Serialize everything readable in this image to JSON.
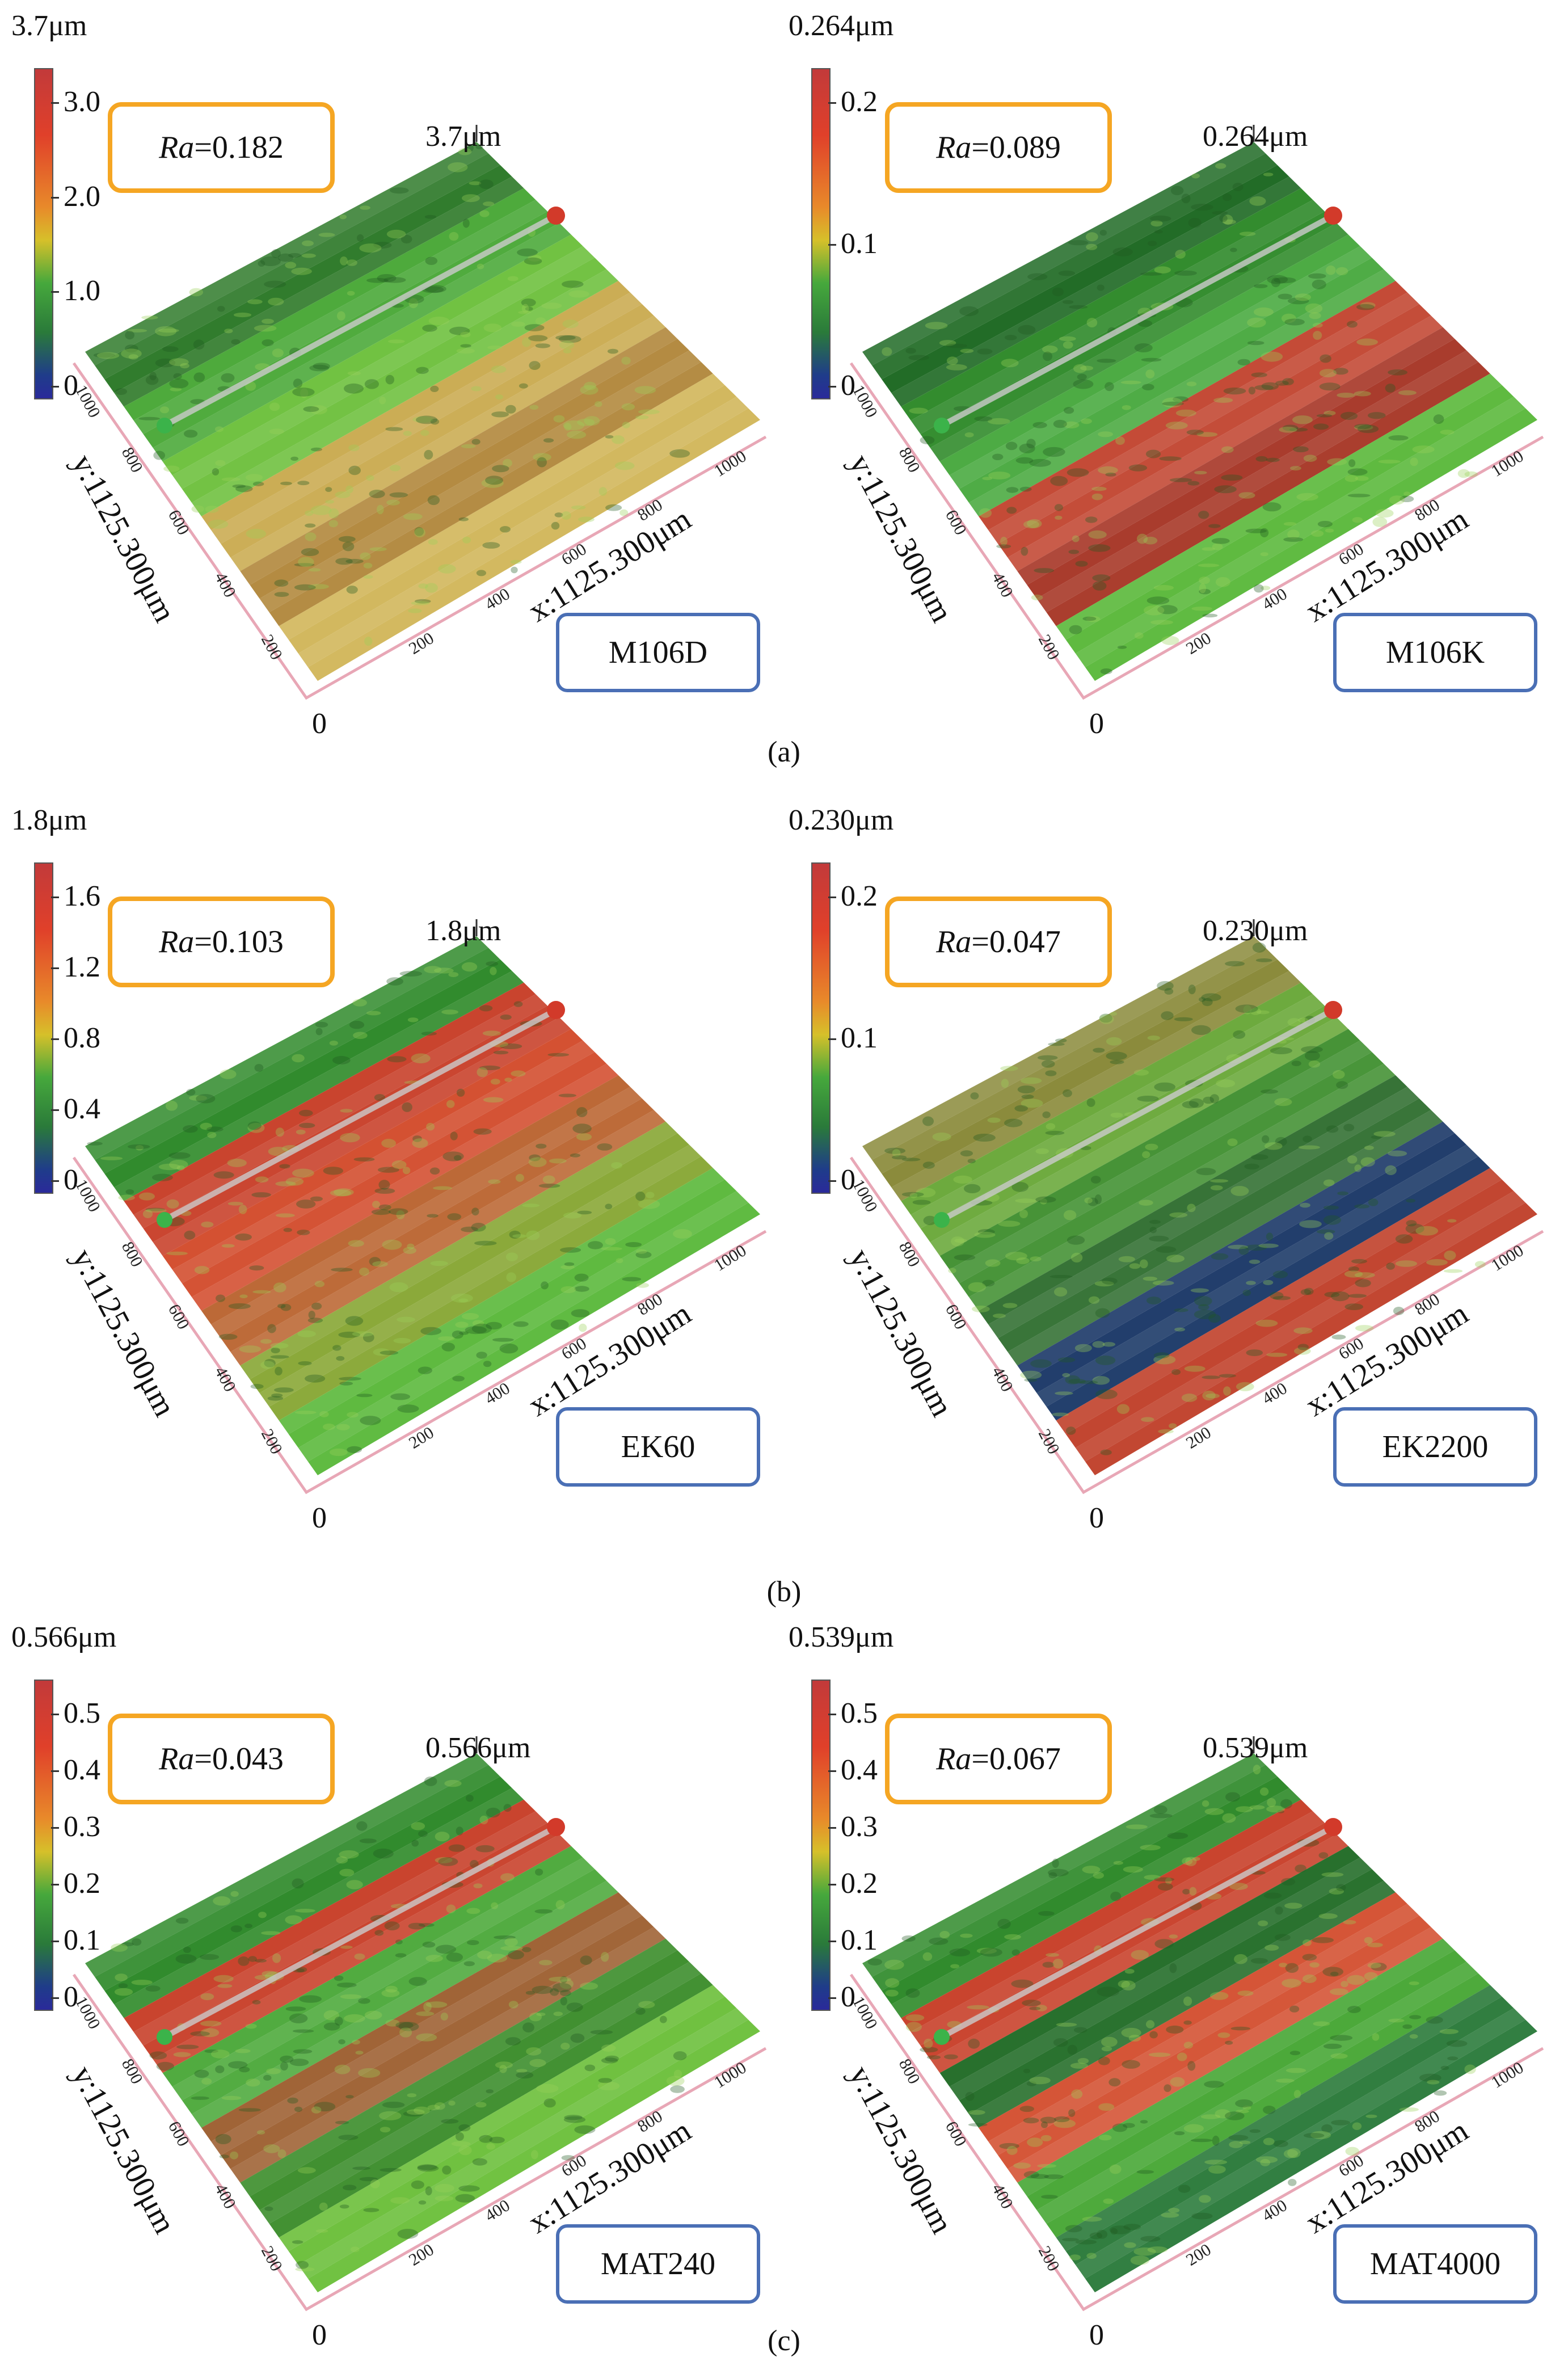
{
  "panels": [
    {
      "id": "m106d",
      "scale_max": "3.7μm",
      "cbar_ticks": [
        "3.0",
        "2.0",
        "1.0",
        "0"
      ],
      "ra_label": "Ra",
      "ra_value": "=0.182",
      "peak": "3.7μm",
      "sample": "M106D",
      "y_axis": "y:1125.300μm",
      "x_axis": "x:1125.300μm",
      "origin": "0",
      "x_ticks": [
        "200",
        "400",
        "600",
        "800",
        "1000"
      ],
      "y_ticks": [
        "1000",
        "800",
        "600",
        "400",
        "200"
      ],
      "colors": [
        "#2f7a2a",
        "#4aa838",
        "#6bbf3a",
        "#c8a84a",
        "#b38a40",
        "#d1b65a"
      ]
    },
    {
      "id": "m106k",
      "scale_max": "0.264μm",
      "cbar_ticks": [
        "0.2",
        "0.1",
        "0"
      ],
      "ra_label": "Ra",
      "ra_value": "=0.089",
      "peak": "0.264μm",
      "sample": "M106K",
      "y_axis": "y:1125.300μm",
      "x_axis": "x:1125.300μm",
      "origin": "0",
      "x_ticks": [
        "200",
        "400",
        "600",
        "800",
        "1000"
      ],
      "y_ticks": [
        "1000",
        "800",
        "600",
        "400",
        "200"
      ],
      "colors": [
        "#1f6a24",
        "#2f8a2a",
        "#46a83c",
        "#c0402a",
        "#a83a2a",
        "#5ab83a"
      ]
    },
    {
      "id": "ek60",
      "scale_max": "1.8μm",
      "cbar_ticks": [
        "1.6",
        "1.2",
        "0.8",
        "0.4",
        "0"
      ],
      "ra_label": "Ra",
      "ra_value": "=0.103",
      "peak": "1.8μm",
      "sample": "EK60",
      "y_axis": "y:1125.300μm",
      "x_axis": "x:1125.300μm",
      "origin": "0",
      "x_ticks": [
        "200",
        "400",
        "600",
        "800",
        "1000"
      ],
      "y_ticks": [
        "1000",
        "800",
        "600",
        "400",
        "200"
      ],
      "colors": [
        "#2f8a2a",
        "#c8402a",
        "#d24a2a",
        "#b8602a",
        "#8aa838",
        "#5ab83a"
      ]
    },
    {
      "id": "ek2200",
      "scale_max": "0.230μm",
      "cbar_ticks": [
        "0.2",
        "0.1",
        "0"
      ],
      "ra_label": "Ra",
      "ra_value": "=0.047",
      "peak": "0.230μm",
      "sample": "EK2200",
      "y_axis": "y:1125.300μm",
      "x_axis": "x:1125.300μm",
      "origin": "0",
      "x_ticks": [
        "200",
        "400",
        "600",
        "800",
        "1000"
      ],
      "y_ticks": [
        "1000",
        "800",
        "600",
        "400",
        "200"
      ],
      "colors": [
        "#8a8a3a",
        "#6aa83a",
        "#3f8f2f",
        "#2a6a2a",
        "#1f3c6a",
        "#c0402a"
      ]
    },
    {
      "id": "mat240",
      "scale_max": "0.566μm",
      "cbar_ticks": [
        "0.5",
        "0.4",
        "0.3",
        "0.2",
        "0.1",
        "0"
      ],
      "ra_label": "Ra",
      "ra_value": "=0.043",
      "peak": "0.566μm",
      "sample": "MAT240",
      "y_axis": "y:1125.300μm",
      "x_axis": "x:1125.300μm",
      "origin": "0",
      "x_ticks": [
        "200",
        "400",
        "600",
        "800",
        "1000"
      ],
      "y_ticks": [
        "1000",
        "800",
        "600",
        "400",
        "200"
      ],
      "colors": [
        "#2f8a2a",
        "#c8402a",
        "#4aa838",
        "#9a5a2a",
        "#3f8f2f",
        "#6bbf3a"
      ]
    },
    {
      "id": "mat4000",
      "scale_max": "0.539μm",
      "cbar_ticks": [
        "0.5",
        "0.4",
        "0.3",
        "0.2",
        "0.1",
        "0"
      ],
      "ra_label": "Ra",
      "ra_value": "=0.067",
      "peak": "0.539μm",
      "sample": "MAT4000",
      "y_axis": "y:1125.300μm",
      "x_axis": "x:1125.300μm",
      "origin": "0",
      "x_ticks": [
        "200",
        "400",
        "600",
        "800",
        "1000"
      ],
      "y_ticks": [
        "1000",
        "800",
        "600",
        "400",
        "200"
      ],
      "colors": [
        "#2f8a2a",
        "#c8402a",
        "#1f6a24",
        "#d24a2a",
        "#4aa838",
        "#2a7a3a"
      ]
    }
  ],
  "subcaptions": [
    "(a)",
    "(b)",
    "(c)"
  ]
}
